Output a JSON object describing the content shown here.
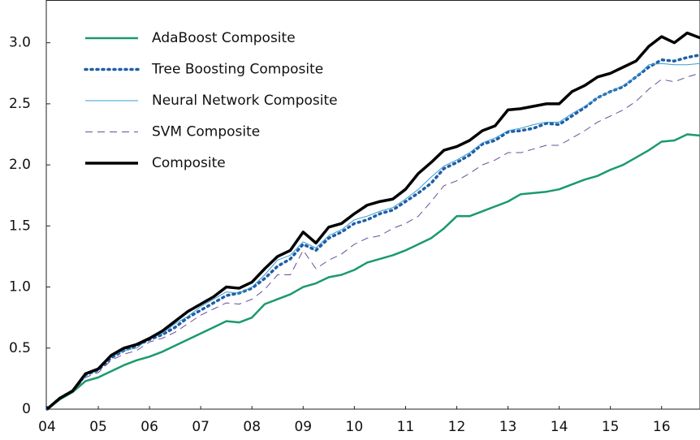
{
  "chart_data": {
    "type": "line",
    "x": [
      4,
      4.25,
      4.5,
      4.75,
      5,
      5.25,
      5.5,
      5.75,
      6,
      6.25,
      6.5,
      6.75,
      7,
      7.25,
      7.5,
      7.75,
      8,
      8.25,
      8.5,
      8.75,
      9,
      9.25,
      9.5,
      9.75,
      10,
      10.25,
      10.5,
      10.75,
      11,
      11.25,
      11.5,
      11.75,
      12,
      12.25,
      12.5,
      12.75,
      13,
      13.25,
      13.5,
      13.75,
      14,
      14.25,
      14.5,
      14.75,
      15,
      15.25,
      15.5,
      15.75,
      16,
      16.25,
      16.5,
      16.75
    ],
    "series": [
      {
        "name": "AdaBoost Composite",
        "color": "#1a9a6c",
        "style": "solid",
        "width": 2.5,
        "values": [
          0,
          0.08,
          0.14,
          0.23,
          0.26,
          0.31,
          0.36,
          0.4,
          0.43,
          0.47,
          0.52,
          0.57,
          0.62,
          0.67,
          0.72,
          0.71,
          0.75,
          0.86,
          0.9,
          0.94,
          1.0,
          1.03,
          1.08,
          1.1,
          1.14,
          1.2,
          1.23,
          1.26,
          1.3,
          1.35,
          1.4,
          1.48,
          1.58,
          1.58,
          1.62,
          1.66,
          1.7,
          1.76,
          1.77,
          1.78,
          1.8,
          1.84,
          1.88,
          1.91,
          1.96,
          2.0,
          2.06,
          2.12,
          2.19,
          2.2,
          2.25,
          2.24
        ]
      },
      {
        "name": "Tree Boosting Composite",
        "color": "#1f5fa6",
        "style": "dotted",
        "width": 3.5,
        "values": [
          0,
          0.09,
          0.15,
          0.28,
          0.32,
          0.42,
          0.48,
          0.52,
          0.57,
          0.61,
          0.67,
          0.75,
          0.81,
          0.87,
          0.93,
          0.95,
          0.99,
          1.07,
          1.17,
          1.23,
          1.35,
          1.3,
          1.4,
          1.45,
          1.52,
          1.55,
          1.6,
          1.63,
          1.7,
          1.77,
          1.85,
          1.97,
          2.02,
          2.08,
          2.17,
          2.2,
          2.27,
          2.28,
          2.3,
          2.34,
          2.33,
          2.4,
          2.47,
          2.55,
          2.6,
          2.64,
          2.72,
          2.8,
          2.86,
          2.85,
          2.88,
          2.9
        ]
      },
      {
        "name": "Neural Network Composite",
        "color": "#3a9bd4",
        "style": "solid",
        "width": 1,
        "values": [
          0,
          0.09,
          0.15,
          0.28,
          0.32,
          0.43,
          0.48,
          0.5,
          0.58,
          0.62,
          0.7,
          0.76,
          0.84,
          0.9,
          0.96,
          0.95,
          1.0,
          1.1,
          1.22,
          1.26,
          1.37,
          1.32,
          1.42,
          1.47,
          1.55,
          1.58,
          1.62,
          1.65,
          1.72,
          1.8,
          1.9,
          1.99,
          2.04,
          2.1,
          2.18,
          2.22,
          2.28,
          2.3,
          2.33,
          2.35,
          2.35,
          2.42,
          2.48,
          2.55,
          2.6,
          2.65,
          2.72,
          2.82,
          2.83,
          2.82,
          2.82,
          2.83
        ]
      },
      {
        "name": "SVM Composite",
        "color": "#6a4c9c",
        "style": "dashed",
        "width": 1,
        "values": [
          0,
          0.08,
          0.14,
          0.26,
          0.3,
          0.4,
          0.45,
          0.48,
          0.55,
          0.58,
          0.63,
          0.7,
          0.77,
          0.82,
          0.87,
          0.86,
          0.9,
          0.98,
          1.1,
          1.1,
          1.3,
          1.15,
          1.22,
          1.27,
          1.35,
          1.4,
          1.42,
          1.48,
          1.52,
          1.58,
          1.7,
          1.83,
          1.87,
          1.93,
          2.0,
          2.04,
          2.1,
          2.1,
          2.13,
          2.16,
          2.16,
          2.22,
          2.28,
          2.35,
          2.4,
          2.45,
          2.52,
          2.62,
          2.7,
          2.68,
          2.72,
          2.75
        ]
      },
      {
        "name": "Composite",
        "color": "#000000",
        "style": "solid",
        "width": 3.5,
        "values": [
          0,
          0.09,
          0.15,
          0.29,
          0.33,
          0.44,
          0.5,
          0.53,
          0.58,
          0.64,
          0.72,
          0.8,
          0.86,
          0.92,
          1.0,
          0.99,
          1.04,
          1.15,
          1.25,
          1.3,
          1.45,
          1.36,
          1.49,
          1.52,
          1.6,
          1.67,
          1.7,
          1.72,
          1.8,
          1.93,
          2.02,
          2.12,
          2.15,
          2.2,
          2.28,
          2.32,
          2.45,
          2.46,
          2.48,
          2.5,
          2.5,
          2.6,
          2.65,
          2.72,
          2.75,
          2.8,
          2.85,
          2.97,
          3.05,
          3.0,
          3.08,
          3.04
        ]
      }
    ],
    "xlim": [
      4,
      16.75
    ],
    "xticks": [
      {
        "value": 4,
        "label": "04"
      },
      {
        "value": 5,
        "label": "05"
      },
      {
        "value": 6,
        "label": "06"
      },
      {
        "value": 7,
        "label": "07"
      },
      {
        "value": 8,
        "label": "08"
      },
      {
        "value": 9,
        "label": "09"
      },
      10,
      11,
      12,
      13,
      14,
      15,
      16
    ],
    "ylim": [
      0,
      3.35
    ],
    "yticks": [
      0,
      0.5,
      {
        "value": 1,
        "label": "1.0"
      },
      1.5,
      {
        "value": 2,
        "label": "2.0"
      },
      2.5,
      {
        "value": 3,
        "label": "3.0"
      }
    ],
    "legend": "upper left",
    "grid": false
  }
}
